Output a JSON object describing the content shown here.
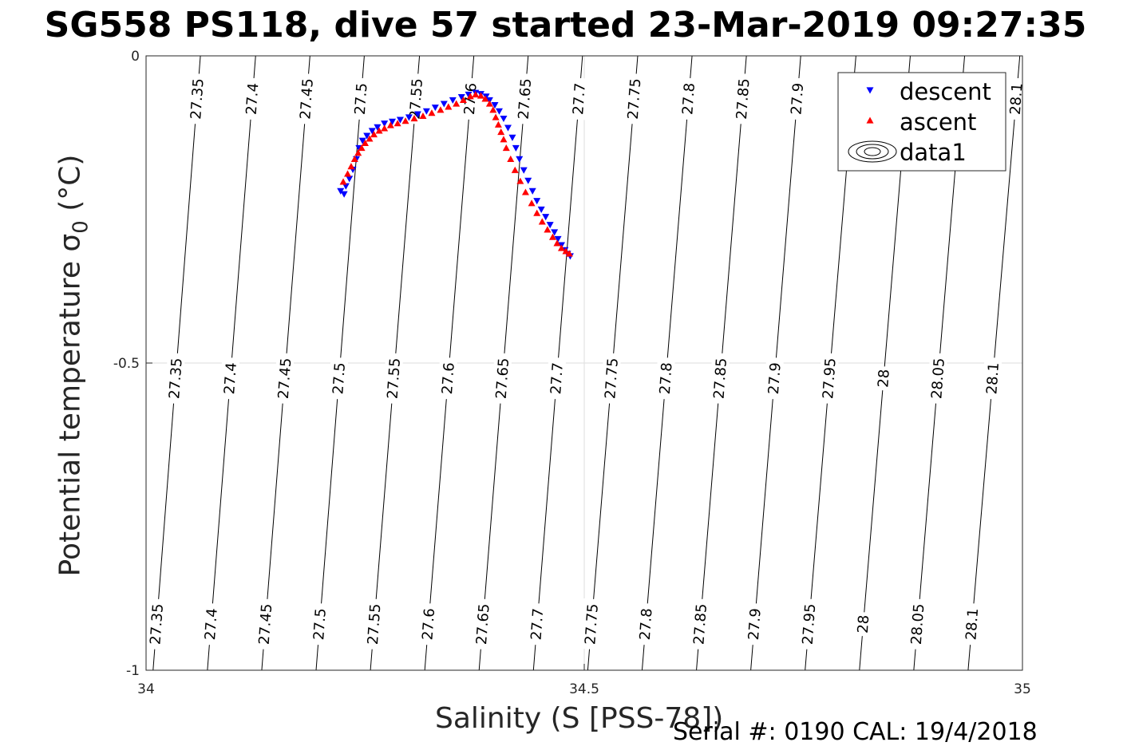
{
  "figure": {
    "title": "SG558 PS118, dive 57 started 23-Mar-2019 09:27:35",
    "footer": "Serial #: 0190  CAL: 19/4/2018"
  },
  "chart_data": {
    "type": "scatter",
    "title": "SG558 PS118, dive 57 started 23-Mar-2019 09:27:35",
    "xlabel": "Salinity (S [PSS-78])",
    "ylabel": "Potential temperature σ0 (°C)",
    "ylabel_main": "Potential temperature ",
    "ylabel_sigma": "σ",
    "ylabel_sub": "0",
    "ylabel_unit": " (°C)",
    "xlim": [
      34,
      35
    ],
    "ylim": [
      -1,
      0
    ],
    "xticks": [
      "34",
      "34.5",
      "35"
    ],
    "yticks": [
      "-1",
      "-0.5",
      "0"
    ],
    "grid": true,
    "legend_position": "top-right",
    "legend": [
      "descent",
      "ascent",
      "data1"
    ],
    "colors": {
      "descent": "#0000ff",
      "ascent": "#ff0000",
      "contour": "#000000",
      "grid": "#dddddd"
    },
    "series": [
      {
        "name": "descent",
        "marker": "triangle-down",
        "x": [
          34.222,
          34.226,
          34.228,
          34.232,
          34.236,
          34.24,
          34.243,
          34.247,
          34.252,
          34.258,
          34.264,
          34.272,
          34.281,
          34.29,
          34.3,
          34.31,
          34.32,
          34.33,
          34.34,
          34.35,
          34.36,
          34.368,
          34.376,
          34.382,
          34.388,
          34.392,
          34.398,
          34.403,
          34.408,
          34.413,
          34.418,
          34.422,
          34.426,
          34.431,
          34.436,
          34.441,
          34.446,
          34.451,
          34.456,
          34.461,
          34.466,
          34.47,
          34.474,
          34.478,
          34.481,
          34.484
        ],
        "y": [
          -0.22,
          -0.225,
          -0.212,
          -0.2,
          -0.185,
          -0.168,
          -0.15,
          -0.138,
          -0.13,
          -0.122,
          -0.116,
          -0.11,
          -0.107,
          -0.104,
          -0.1,
          -0.095,
          -0.09,
          -0.084,
          -0.078,
          -0.072,
          -0.067,
          -0.063,
          -0.06,
          -0.062,
          -0.066,
          -0.072,
          -0.08,
          -0.09,
          -0.102,
          -0.117,
          -0.133,
          -0.15,
          -0.168,
          -0.186,
          -0.203,
          -0.22,
          -0.236,
          -0.25,
          -0.262,
          -0.275,
          -0.287,
          -0.298,
          -0.308,
          -0.316,
          -0.322,
          -0.326
        ]
      },
      {
        "name": "ascent",
        "marker": "triangle-up",
        "x": [
          34.225,
          34.23,
          34.234,
          34.238,
          34.242,
          34.246,
          34.25,
          34.255,
          34.26,
          34.266,
          34.272,
          34.279,
          34.287,
          34.296,
          34.306,
          34.316,
          34.326,
          34.336,
          34.345,
          34.354,
          34.362,
          34.37,
          34.376,
          34.382,
          34.387,
          34.392,
          34.396,
          34.399,
          34.402,
          34.405,
          34.408,
          34.411,
          34.416,
          34.421,
          34.427,
          34.433,
          34.44,
          34.446,
          34.452,
          34.458,
          34.464,
          34.469,
          34.474,
          34.479,
          34.483
        ],
        "y": [
          -0.205,
          -0.192,
          -0.18,
          -0.168,
          -0.158,
          -0.15,
          -0.142,
          -0.135,
          -0.128,
          -0.122,
          -0.118,
          -0.113,
          -0.11,
          -0.106,
          -0.102,
          -0.098,
          -0.093,
          -0.088,
          -0.083,
          -0.078,
          -0.072,
          -0.066,
          -0.063,
          -0.065,
          -0.07,
          -0.078,
          -0.088,
          -0.1,
          -0.112,
          -0.124,
          -0.136,
          -0.15,
          -0.168,
          -0.186,
          -0.204,
          -0.222,
          -0.24,
          -0.256,
          -0.27,
          -0.283,
          -0.295,
          -0.305,
          -0.313,
          -0.318,
          -0.322
        ]
      },
      {
        "name": "data1",
        "type": "contour",
        "levels": [
          "27.35",
          "27.4",
          "27.45",
          "27.5",
          "27.55",
          "27.6",
          "27.65",
          "27.7",
          "27.75",
          "27.8",
          "27.85",
          "27.9",
          "27.95",
          "28",
          "28.05",
          "28.1"
        ],
        "s_at_bottom": [
          34.008,
          34.07,
          34.132,
          34.194,
          34.256,
          34.318,
          34.38,
          34.442,
          34.504,
          34.566,
          34.628,
          34.69,
          34.752,
          34.814,
          34.876,
          34.938
        ],
        "s_at_top": [
          34.062,
          34.125,
          34.187,
          34.249,
          34.312,
          34.374,
          34.436,
          34.498,
          34.561,
          34.623,
          34.685,
          34.747,
          34.81,
          34.872,
          34.934,
          34.997
        ],
        "label_rows": [
          {
            "y": -0.07,
            "levels": [
              "27.35",
              "27.4",
              "27.45",
              "27.5",
              "27.55",
              "27.6",
              "27.65",
              "27.7",
              "27.75",
              "27.8",
              "27.85",
              "27.9",
              "28.1"
            ]
          },
          {
            "y": -0.525,
            "levels": [
              "27.35",
              "27.4",
              "27.45",
              "27.5",
              "27.55",
              "27.6",
              "27.65",
              "27.7",
              "27.75",
              "27.8",
              "27.85",
              "27.9",
              "27.95",
              "28",
              "28.05",
              "28.1"
            ]
          },
          {
            "y": -0.925,
            "levels": [
              "27.35",
              "27.4",
              "27.45",
              "27.5",
              "27.55",
              "27.6",
              "27.65",
              "27.7",
              "27.75",
              "27.8",
              "27.85",
              "27.9",
              "27.95",
              "28",
              "28.05",
              "28.1"
            ]
          }
        ]
      }
    ]
  }
}
